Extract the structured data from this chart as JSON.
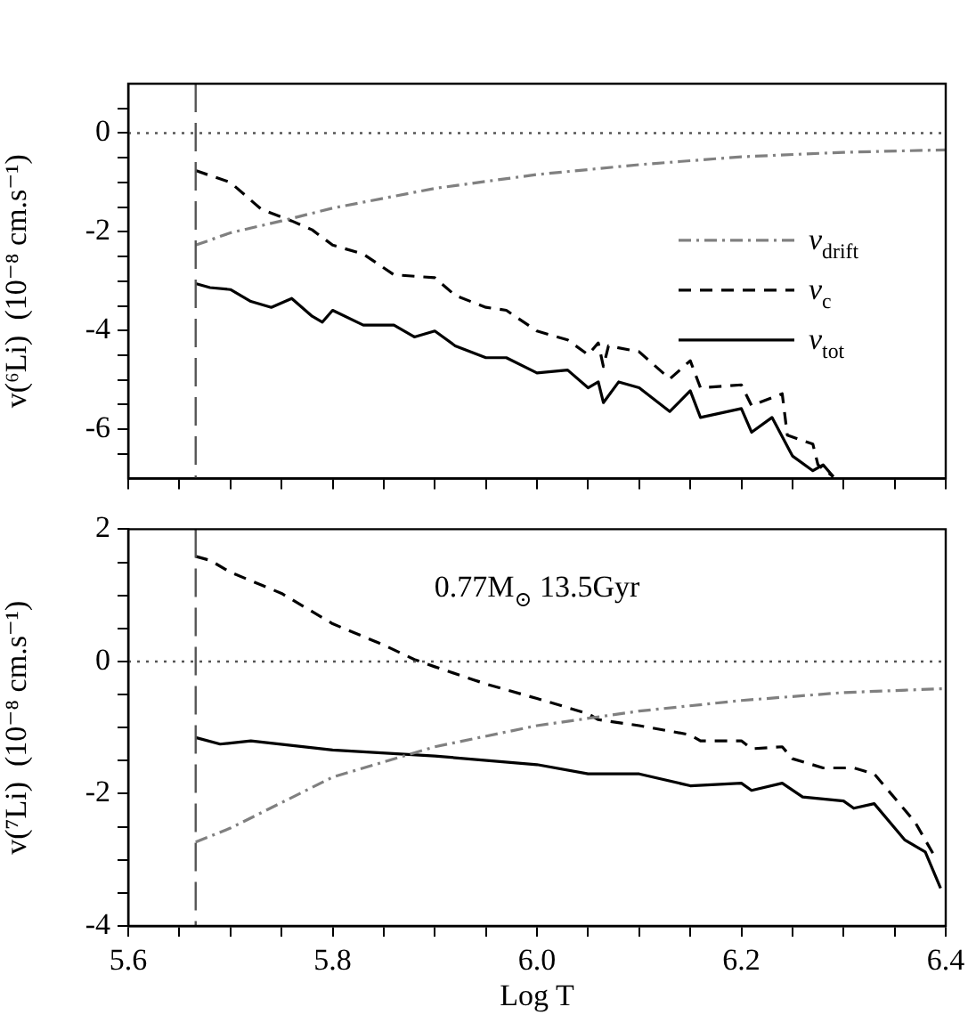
{
  "chart_data": [
    {
      "type": "line",
      "ylabel": "v(⁶Li)  (10⁻⁸ cm.s⁻¹)",
      "xlim": [
        5.6,
        6.4
      ],
      "ylim": [
        -7,
        1
      ],
      "xticks": [
        {
          "value": 5.6,
          "label": null
        },
        {
          "value": 5.65,
          "label": null
        },
        {
          "value": 5.7,
          "label": null
        },
        {
          "value": 5.75,
          "label": null
        },
        {
          "value": 5.8,
          "label": null
        },
        {
          "value": 5.85,
          "label": null
        },
        {
          "value": 5.9,
          "label": null
        },
        {
          "value": 5.95,
          "label": null
        },
        {
          "value": 6.0,
          "label": null
        },
        {
          "value": 6.05,
          "label": null
        },
        {
          "value": 6.1,
          "label": null
        },
        {
          "value": 6.15,
          "label": null
        },
        {
          "value": 6.2,
          "label": null
        },
        {
          "value": 6.25,
          "label": null
        },
        {
          "value": 6.3,
          "label": null
        },
        {
          "value": 6.35,
          "label": null
        },
        {
          "value": 6.4,
          "label": null
        }
      ],
      "yticks": [
        {
          "value": -6.5,
          "label": null
        },
        -6,
        {
          "value": -5.5,
          "label": null
        },
        {
          "value": -5,
          "label": null
        },
        {
          "value": -4.5,
          "label": null
        },
        -4,
        {
          "value": -3.5,
          "label": null
        },
        {
          "value": -3,
          "label": null
        },
        {
          "value": -2.5,
          "label": null
        },
        -2,
        {
          "value": -1.5,
          "label": null
        },
        {
          "value": -1,
          "label": null
        },
        {
          "value": -0.5,
          "label": null
        },
        0,
        {
          "value": 0.5,
          "label": null
        }
      ],
      "tick_labels": "y",
      "grid": false,
      "legend": "right",
      "marker": "none",
      "ref_lines": [
        {
          "axis": "x",
          "value": 5.666,
          "color": "#555555",
          "line_style": "dashed"
        },
        {
          "axis": "y",
          "value": 0,
          "color": "#555555",
          "line_style": "dotted"
        }
      ],
      "series": [
        {
          "name": "v$_{drift}$",
          "color": "#808080",
          "line_style": "dashdot",
          "x": [
            5.666,
            5.7,
            5.75,
            5.8,
            5.9,
            6.0,
            6.1,
            6.2,
            6.3,
            6.4
          ],
          "values": [
            -2.27,
            -2.02,
            -1.78,
            -1.52,
            -1.12,
            -0.84,
            -0.64,
            -0.48,
            -0.39,
            -0.34
          ]
        },
        {
          "name": "v$_{c}$",
          "color": "#000000",
          "line_style": "dashed",
          "x": [
            5.666,
            5.7,
            5.73,
            5.76,
            5.78,
            5.8,
            5.83,
            5.86,
            5.9,
            5.92,
            5.95,
            5.97,
            6.0,
            6.03,
            6.05,
            6.06,
            6.065,
            6.07,
            6.1,
            6.13,
            6.15,
            6.16,
            6.2,
            6.21,
            6.24,
            6.245,
            6.27,
            6.275,
            6.29
          ],
          "values": [
            -0.76,
            -1.0,
            -1.54,
            -1.78,
            -1.96,
            -2.27,
            -2.45,
            -2.87,
            -2.93,
            -3.29,
            -3.53,
            -3.59,
            -4.01,
            -4.19,
            -4.49,
            -4.25,
            -4.73,
            -4.31,
            -4.43,
            -4.98,
            -4.61,
            -5.16,
            -5.1,
            -5.52,
            -5.28,
            -6.12,
            -6.3,
            -6.72,
            -6.96
          ]
        },
        {
          "name": "v$_{tot}$",
          "color": "#000000",
          "line_style": "solid",
          "x": [
            5.666,
            5.68,
            5.7,
            5.72,
            5.74,
            5.76,
            5.78,
            5.79,
            5.8,
            5.83,
            5.86,
            5.88,
            5.9,
            5.92,
            5.95,
            5.97,
            6.0,
            6.03,
            6.05,
            6.06,
            6.065,
            6.08,
            6.1,
            6.13,
            6.15,
            6.16,
            6.2,
            6.21,
            6.23,
            6.25,
            6.27,
            6.28,
            6.29
          ],
          "values": [
            -3.05,
            -3.13,
            -3.17,
            -3.41,
            -3.53,
            -3.35,
            -3.71,
            -3.83,
            -3.59,
            -3.89,
            -3.89,
            -4.13,
            -4.01,
            -4.31,
            -4.55,
            -4.55,
            -4.86,
            -4.8,
            -5.16,
            -5.04,
            -5.46,
            -5.04,
            -5.16,
            -5.64,
            -5.22,
            -5.76,
            -5.58,
            -6.06,
            -5.76,
            -6.54,
            -6.84,
            -6.72,
            -6.96
          ]
        }
      ]
    },
    {
      "type": "line",
      "xlabel": "Log T",
      "ylabel": "v(⁷Li)  (10⁻⁸ cm.s⁻¹)",
      "xlim": [
        5.6,
        6.4
      ],
      "ylim": [
        -4,
        2
      ],
      "xticks": [
        {
          "value": 5.6,
          "label": "5.6"
        },
        {
          "value": 5.65,
          "label": null
        },
        {
          "value": 5.7,
          "label": null
        },
        {
          "value": 5.75,
          "label": null
        },
        {
          "value": 5.8,
          "label": "5.8"
        },
        {
          "value": 5.85,
          "label": null
        },
        {
          "value": 5.9,
          "label": null
        },
        {
          "value": 5.95,
          "label": null
        },
        {
          "value": 6.0,
          "label": "6.0"
        },
        {
          "value": 6.05,
          "label": null
        },
        {
          "value": 6.1,
          "label": null
        },
        {
          "value": 6.15,
          "label": null
        },
        {
          "value": 6.2,
          "label": "6.2"
        },
        {
          "value": 6.25,
          "label": null
        },
        {
          "value": 6.3,
          "label": null
        },
        {
          "value": 6.35,
          "label": null
        },
        {
          "value": 6.4,
          "label": "6.4"
        }
      ],
      "yticks": [
        -4,
        {
          "value": -3.5,
          "label": null
        },
        {
          "value": -3,
          "label": null
        },
        {
          "value": -2.5,
          "label": null
        },
        -2,
        {
          "value": -1.5,
          "label": null
        },
        {
          "value": -1,
          "label": null
        },
        {
          "value": -0.5,
          "label": null
        },
        0,
        {
          "value": 0.5,
          "label": null
        },
        {
          "value": 1,
          "label": null
        },
        {
          "value": 1.5,
          "label": null
        },
        2
      ],
      "grid": false,
      "marker": "none",
      "annotations": [
        "0.77M$_{⊙}$ 13.5Gyr"
      ],
      "ref_lines": [
        {
          "axis": "x",
          "value": 5.666,
          "color": "#555555",
          "line_style": "dashed"
        },
        {
          "axis": "y",
          "value": 0,
          "color": "#555555",
          "line_style": "dotted"
        }
      ],
      "series": [
        {
          "color": "#808080",
          "line_style": "dashdot",
          "x": [
            5.666,
            5.7,
            5.8,
            5.9,
            6.0,
            6.1,
            6.2,
            6.3,
            6.4
          ],
          "values": [
            -2.73,
            -2.52,
            -1.75,
            -1.29,
            -0.97,
            -0.75,
            -0.59,
            -0.47,
            -0.41
          ]
        },
        {
          "color": "#000000",
          "line_style": "dashed",
          "x": [
            5.666,
            5.68,
            5.7,
            5.75,
            5.8,
            5.85,
            5.88,
            5.9,
            5.95,
            6.0,
            6.05,
            6.06,
            6.1,
            6.15,
            6.16,
            6.2,
            6.21,
            6.24,
            6.25,
            6.28,
            6.31,
            6.33,
            6.37,
            6.39
          ],
          "values": [
            1.59,
            1.53,
            1.35,
            1.03,
            0.57,
            0.25,
            0.03,
            -0.08,
            -0.34,
            -0.56,
            -0.79,
            -0.88,
            -0.97,
            -1.11,
            -1.2,
            -1.2,
            -1.32,
            -1.29,
            -1.47,
            -1.61,
            -1.61,
            -1.7,
            -2.43,
            -2.97
          ]
        },
        {
          "color": "#000000",
          "line_style": "solid",
          "x": [
            5.666,
            5.69,
            5.72,
            5.8,
            5.9,
            6.0,
            6.05,
            6.1,
            6.15,
            6.2,
            6.21,
            6.24,
            6.26,
            6.3,
            6.31,
            6.33,
            6.36,
            6.38,
            6.395
          ],
          "values": [
            -1.15,
            -1.25,
            -1.2,
            -1.34,
            -1.43,
            -1.56,
            -1.7,
            -1.7,
            -1.88,
            -1.84,
            -1.95,
            -1.84,
            -2.05,
            -2.11,
            -2.22,
            -2.15,
            -2.7,
            -2.88,
            -3.43
          ]
        }
      ]
    }
  ]
}
